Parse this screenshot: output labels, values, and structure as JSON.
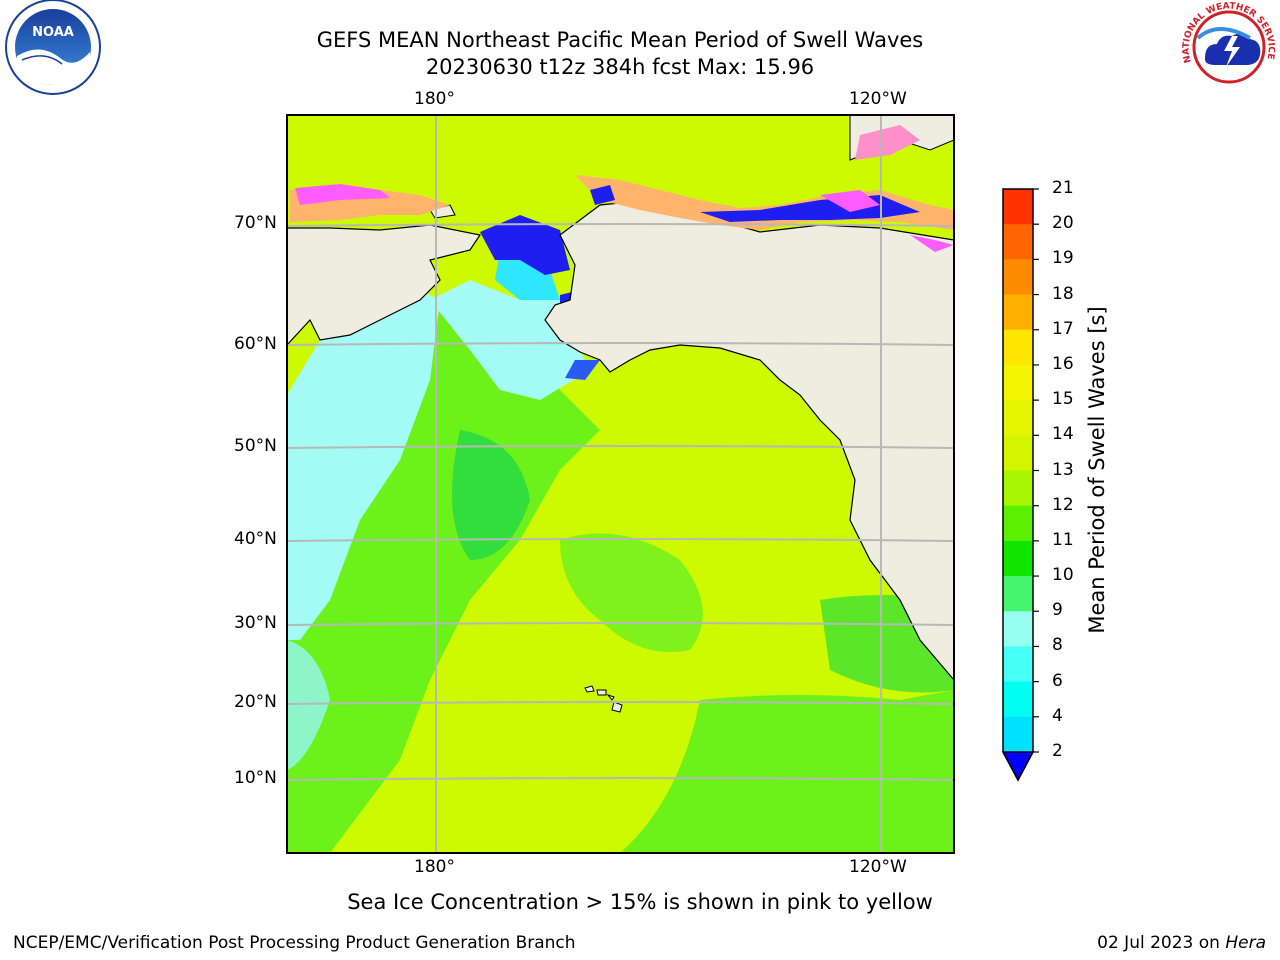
{
  "title": {
    "line1": "GEFS MEAN Northeast Pacific Mean Period of Swell Waves",
    "line2": "20230630 t12z 384h fcst   Max: 15.96"
  },
  "map": {
    "lat_labels": [
      "70°N",
      "60°N",
      "50°N",
      "40°N",
      "30°N",
      "20°N",
      "10°N"
    ],
    "lon_labels": [
      "180°",
      "120°W"
    ],
    "colors": {
      "land": "#efeddf",
      "ocean_main": "#cdfa00",
      "ocean_green": "#6cf21a",
      "ocean_cyan": "#a4fbf6",
      "ice_pink": "#ff5cff",
      "ice_orange": "#ffb36b",
      "deep_blue": "#1e1ef0",
      "gridline": "#b8b8b8"
    }
  },
  "colorbar": {
    "label": "Mean Period of Swell Waves [s]",
    "ticks": [
      "21",
      "20",
      "19",
      "18",
      "17",
      "16",
      "15",
      "14",
      "13",
      "12",
      "11",
      "10",
      "9",
      "8",
      "6",
      "4",
      "2"
    ],
    "colors": [
      "#ff0000",
      "#ff3300",
      "#ff6600",
      "#ff8c00",
      "#ffb000",
      "#ffe600",
      "#f5f500",
      "#e6f500",
      "#d4f500",
      "#a8f500",
      "#5cf000",
      "#10e600",
      "#46f56e",
      "#96fff0",
      "#46fff5",
      "#00fff0",
      "#00e0ff",
      "#0070ff",
      "#0000ff"
    ]
  },
  "caption": "Sea Ice Concentration > 15% is shown in pink to yellow",
  "footer": {
    "left": "NCEP/EMC/Verification Post Processing Product Generation Branch",
    "right_date": "02 Jul 2023 on ",
    "right_host": "Hera"
  },
  "logos": {
    "noaa_text": "NOAA",
    "nws_text": "NATIONAL WEATHER SERVICE"
  }
}
